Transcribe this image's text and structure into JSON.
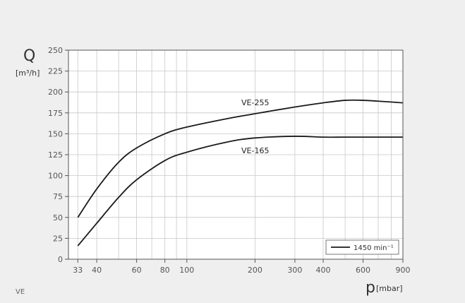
{
  "chart_data": {
    "type": "line",
    "x_scale": "log",
    "xlim": [
      30,
      900
    ],
    "ylim": [
      0,
      250
    ],
    "grid": true,
    "y_axis": {
      "symbol": "Q",
      "unit": "[m³/h]"
    },
    "x_axis": {
      "symbol": "p",
      "unit": "[mbar]"
    },
    "x_ticks": [
      33,
      40,
      60,
      80,
      100,
      200,
      300,
      400,
      600,
      900
    ],
    "x_grid": [
      30,
      33,
      40,
      50,
      60,
      70,
      80,
      90,
      100,
      200,
      300,
      400,
      500,
      600,
      700,
      800,
      900
    ],
    "y_ticks": [
      0,
      25,
      50,
      75,
      100,
      125,
      150,
      175,
      200,
      225,
      250
    ],
    "series": [
      {
        "name": "VE-255",
        "x": [
          33,
          40,
          50,
          60,
          80,
          100,
          150,
          200,
          300,
          400,
          500,
          600,
          700,
          900
        ],
        "y": [
          50,
          84,
          116,
          133,
          150,
          158,
          168,
          174,
          182,
          187,
          190,
          190,
          189,
          187
        ]
      },
      {
        "name": "VE-165",
        "x": [
          33,
          40,
          50,
          60,
          80,
          100,
          150,
          200,
          300,
          400,
          500,
          600,
          700,
          900
        ],
        "y": [
          16,
          43,
          74,
          95,
          118,
          128,
          140,
          145,
          147,
          146,
          146,
          146,
          146,
          146
        ]
      }
    ],
    "legend": {
      "label": "1450 min⁻¹",
      "position": "bottom-right"
    }
  },
  "footer": {
    "label": "VE"
  },
  "colors": {
    "line": "#1a1a1a",
    "grid": "#c8c8c8",
    "axis": "#555555",
    "plot_bg": "#ffffff",
    "page_bg": "#efefef"
  }
}
